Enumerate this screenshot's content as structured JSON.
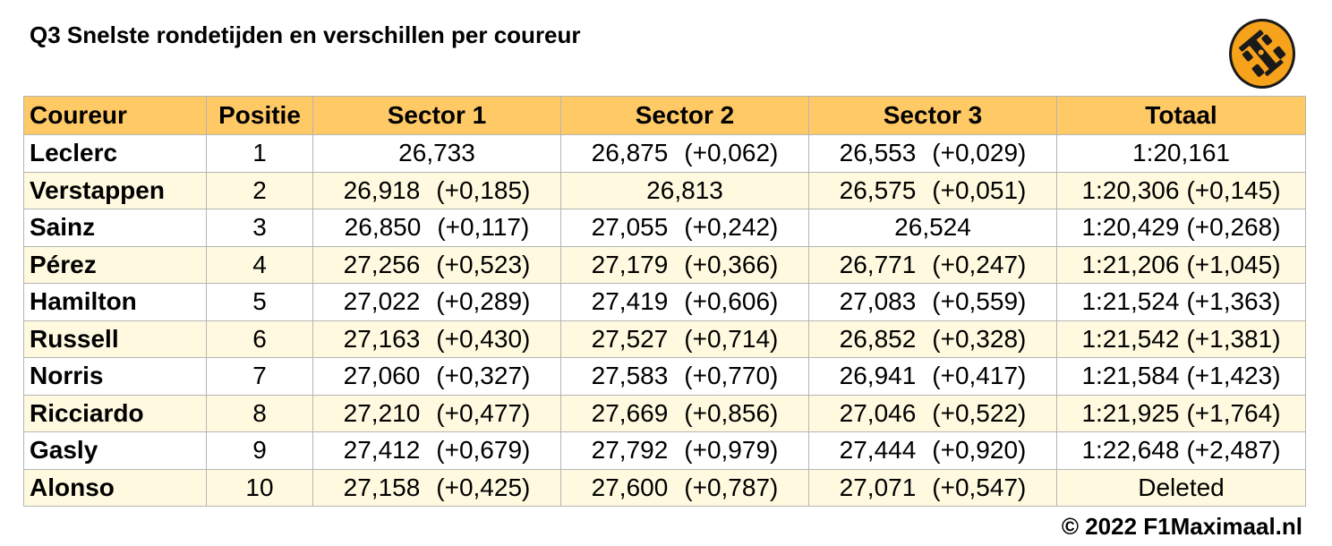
{
  "title": "Q3 Snelste rondetijden en verschillen per coureur",
  "colors": {
    "header_bg": "#ffc966",
    "row_alt_bg": "#fffadf",
    "logo_bg": "#f7a21b"
  },
  "logo": {
    "icon": "race-car-icon"
  },
  "table": {
    "headers": [
      "Coureur",
      "Positie",
      "Sector 1",
      "Sector 2",
      "Sector 3",
      "Totaal"
    ],
    "rows": [
      {
        "driver": "Leclerc",
        "pos": "1",
        "s1": "26,733",
        "s1_gap": "",
        "s2": "26,875",
        "s2_gap": "(+0,062)",
        "s3": "26,553",
        "s3_gap": "(+0,029)",
        "total": "1:20,161",
        "total_gap": ""
      },
      {
        "driver": "Verstappen",
        "pos": "2",
        "s1": "26,918",
        "s1_gap": "(+0,185)",
        "s2": "26,813",
        "s2_gap": "",
        "s3": "26,575",
        "s3_gap": "(+0,051)",
        "total": "1:20,306",
        "total_gap": "(+0,145)"
      },
      {
        "driver": "Sainz",
        "pos": "3",
        "s1": "26,850",
        "s1_gap": "(+0,117)",
        "s2": "27,055",
        "s2_gap": "(+0,242)",
        "s3": "26,524",
        "s3_gap": "",
        "total": "1:20,429",
        "total_gap": "(+0,268)"
      },
      {
        "driver": "Pérez",
        "pos": "4",
        "s1": "27,256",
        "s1_gap": "(+0,523)",
        "s2": "27,179",
        "s2_gap": "(+0,366)",
        "s3": "26,771",
        "s3_gap": "(+0,247)",
        "total": "1:21,206",
        "total_gap": "(+1,045)"
      },
      {
        "driver": "Hamilton",
        "pos": "5",
        "s1": "27,022",
        "s1_gap": "(+0,289)",
        "s2": "27,419",
        "s2_gap": "(+0,606)",
        "s3": "27,083",
        "s3_gap": "(+0,559)",
        "total": "1:21,524",
        "total_gap": "(+1,363)"
      },
      {
        "driver": "Russell",
        "pos": "6",
        "s1": "27,163",
        "s1_gap": "(+0,430)",
        "s2": "27,527",
        "s2_gap": "(+0,714)",
        "s3": "26,852",
        "s3_gap": "(+0,328)",
        "total": "1:21,542",
        "total_gap": "(+1,381)"
      },
      {
        "driver": "Norris",
        "pos": "7",
        "s1": "27,060",
        "s1_gap": "(+0,327)",
        "s2": "27,583",
        "s2_gap": "(+0,770)",
        "s3": "26,941",
        "s3_gap": "(+0,417)",
        "total": "1:21,584",
        "total_gap": "(+1,423)"
      },
      {
        "driver": "Ricciardo",
        "pos": "8",
        "s1": "27,210",
        "s1_gap": "(+0,477)",
        "s2": "27,669",
        "s2_gap": "(+0,856)",
        "s3": "27,046",
        "s3_gap": "(+0,522)",
        "total": "1:21,925",
        "total_gap": "(+1,764)"
      },
      {
        "driver": "Gasly",
        "pos": "9",
        "s1": "27,412",
        "s1_gap": "(+0,679)",
        "s2": "27,792",
        "s2_gap": "(+0,979)",
        "s3": "27,444",
        "s3_gap": "(+0,920)",
        "total": "1:22,648",
        "total_gap": "(+2,487)"
      },
      {
        "driver": "Alonso",
        "pos": "10",
        "s1": "27,158",
        "s1_gap": "(+0,425)",
        "s2": "27,600",
        "s2_gap": "(+0,787)",
        "s3": "27,071",
        "s3_gap": "(+0,547)",
        "total": "Deleted",
        "total_gap": ""
      }
    ]
  },
  "copyright": "© 2022 F1Maximaal.nl"
}
